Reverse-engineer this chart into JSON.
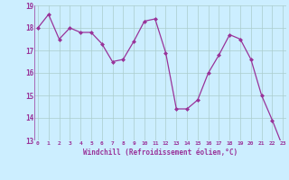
{
  "x": [
    0,
    1,
    2,
    3,
    4,
    5,
    6,
    7,
    8,
    9,
    10,
    11,
    12,
    13,
    14,
    15,
    16,
    17,
    18,
    19,
    20,
    21,
    22,
    23
  ],
  "y": [
    18.0,
    18.6,
    17.5,
    18.0,
    17.8,
    17.8,
    17.3,
    16.5,
    16.6,
    17.4,
    18.3,
    18.4,
    16.9,
    14.4,
    14.4,
    14.8,
    16.0,
    16.8,
    17.7,
    17.5,
    16.6,
    15.0,
    13.9,
    12.7
  ],
  "line_color": "#993399",
  "marker": "D",
  "marker_size": 2.0,
  "bg_color": "#cceeff",
  "grid_color": "#aacccc",
  "xlabel": "Windchill (Refroidissement éolien,°C)",
  "xlabel_color": "#993399",
  "tick_color": "#993399",
  "ylim": [
    13,
    19
  ],
  "yticks": [
    13,
    14,
    15,
    16,
    17,
    18,
    19
  ],
  "xticks": [
    0,
    1,
    2,
    3,
    4,
    5,
    6,
    7,
    8,
    9,
    10,
    11,
    12,
    13,
    14,
    15,
    16,
    17,
    18,
    19,
    20,
    21,
    22,
    23
  ],
  "xlim": [
    -0.3,
    23.3
  ]
}
